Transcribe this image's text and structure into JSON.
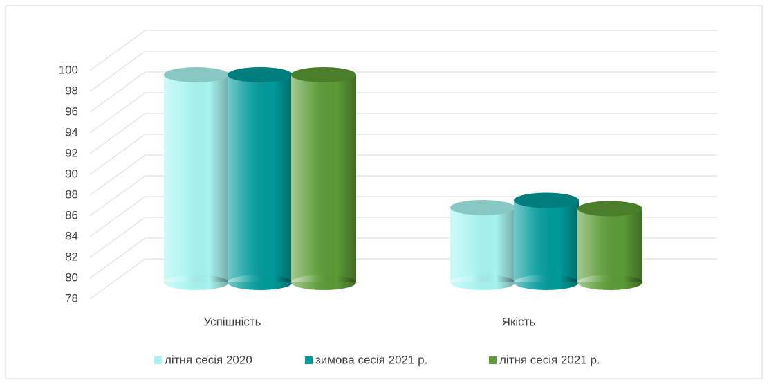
{
  "chart_data": {
    "type": "bar3d",
    "categories": [
      "Успішність",
      "Якість"
    ],
    "series": [
      {
        "name": "літня сесія 2020",
        "color": "#a6f3f0",
        "values": [
          98,
          85.2
        ]
      },
      {
        "name": "зимова сесія 2021 р.",
        "color": "#009a9a",
        "values": [
          98,
          85.9
        ]
      },
      {
        "name": "літня сесія 2021 р.",
        "color": "#5b9a35",
        "values": [
          98,
          85.1
        ]
      }
    ],
    "ylim": [
      78,
      100
    ],
    "yticks": [
      78,
      80,
      82,
      84,
      86,
      88,
      90,
      92,
      94,
      96,
      98,
      100
    ],
    "grid": true,
    "legend": "bottom"
  }
}
